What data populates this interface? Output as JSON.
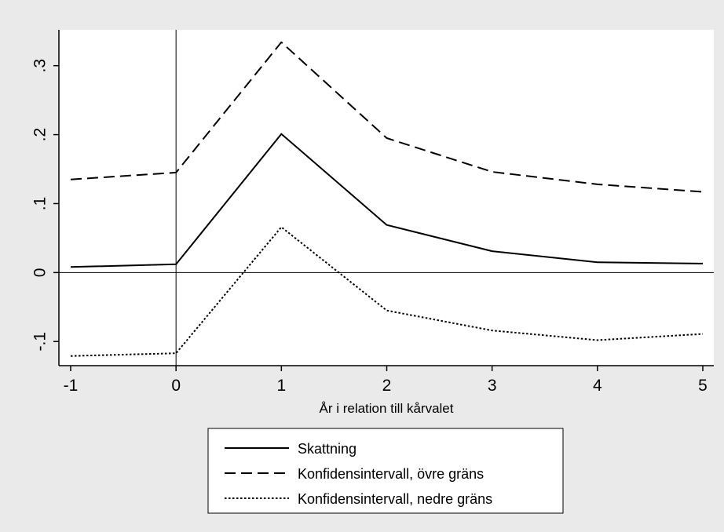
{
  "chart_data": {
    "type": "line",
    "title": "",
    "xlabel": "År i relation till kårvalet",
    "ylabel": "",
    "x": [
      -1,
      0,
      1,
      2,
      3,
      4,
      5
    ],
    "xlim": [
      -1,
      5
    ],
    "ylim": [
      -0.135,
      0.352
    ],
    "x_ticks": [
      {
        "value": -1,
        "label": "-1"
      },
      {
        "value": 0,
        "label": "0"
      },
      {
        "value": 1,
        "label": "1"
      },
      {
        "value": 2,
        "label": "2"
      },
      {
        "value": 3,
        "label": "3"
      },
      {
        "value": 4,
        "label": "4"
      },
      {
        "value": 5,
        "label": "5"
      }
    ],
    "y_ticks": [
      {
        "value": -0.1,
        "label": "-.1"
      },
      {
        "value": 0,
        "label": "0"
      },
      {
        "value": 0.1,
        "label": ".1"
      },
      {
        "value": 0.2,
        "label": ".2"
      },
      {
        "value": 0.3,
        "label": ".3"
      }
    ],
    "reference_lines": {
      "x": 0,
      "y": 0
    },
    "grid": false,
    "legend_position": "bottom",
    "series": [
      {
        "name": "Skattning",
        "style": "solid",
        "values": [
          0.008,
          0.012,
          0.201,
          0.069,
          0.031,
          0.015,
          0.013
        ]
      },
      {
        "name": "Konfidensintervall, övre gräns",
        "style": "dashed",
        "values": [
          0.135,
          0.145,
          0.334,
          0.195,
          0.146,
          0.128,
          0.117
        ]
      },
      {
        "name": "Konfidensintervall, nedre gräns",
        "style": "dotted",
        "values": [
          -0.121,
          -0.117,
          0.066,
          -0.055,
          -0.084,
          -0.098,
          -0.089
        ]
      }
    ]
  },
  "colors": {
    "page_background": "#eaeaea",
    "plot_background": "#ffffff",
    "line": "#000000"
  }
}
